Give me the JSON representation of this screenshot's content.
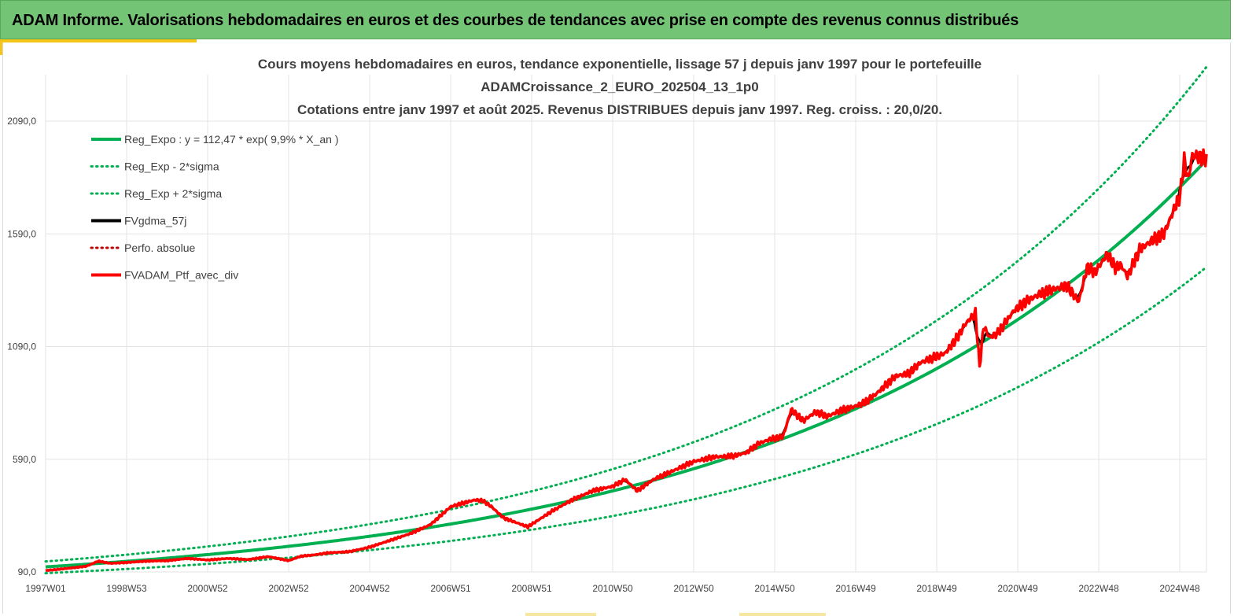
{
  "banner": {
    "title": "ADAM Informe. Valorisations hebdomadaires en euros et des courbes de tendances avec prise en compte des revenus connus distribués"
  },
  "colors": {
    "banner_bg": "#74c476",
    "accent": "#f5c518",
    "trend": "#00b050",
    "smoothed": "#000000",
    "portfolio": "#ff0000",
    "perf_abs": "#c00000"
  },
  "chart_data": {
    "type": "line",
    "title_lines": [
      "Cours moyens hebdomadaires  en euros, tendance exponentielle, lissage 57 j depuis janv 1997 pour le portefeuille",
      "ADAMCroissance_2_EURO_202504_13_1p0",
      "Cotations  entre janv 1997 et août 2025. Revenus DISTRIBUES depuis janv 1997. Reg. croiss. : 20,0/20."
    ],
    "x_tick_labels": [
      "1997W01",
      "1998W53",
      "2000W52",
      "2002W52",
      "2004W52",
      "2006W51",
      "2008W51",
      "2010W50",
      "2012W50",
      "2014W50",
      "2016W49",
      "2018W49",
      "2020W49",
      "2022W48",
      "2024W48"
    ],
    "x_range": [
      1997.0,
      2025.65
    ],
    "y_tick_labels": [
      "90,0",
      "590,0",
      "1090,0",
      "1590,0",
      "2090,0"
    ],
    "y_ticks": [
      90,
      590,
      1090,
      1590,
      2090
    ],
    "ylim": [
      90,
      2090
    ],
    "grid": true,
    "legend_position": "top-left",
    "legend": [
      {
        "key": "trend",
        "label": "Reg_Expo : y = 112,47 * exp( 9,9% *  X_an )"
      },
      {
        "key": "lower",
        "label": "Reg_Exp - 2*sigma"
      },
      {
        "key": "upper",
        "label": "Reg_Exp + 2*sigma"
      },
      {
        "key": "smoothed",
        "label": "FVgdma_57j"
      },
      {
        "key": "perf",
        "label": "Perfo. absolue"
      },
      {
        "key": "portfolio",
        "label": "FVADAM_Ptf_avec_div"
      }
    ],
    "trend": {
      "a": 112.47,
      "rate": 0.099,
      "start_year": 1997.0
    },
    "band_factors": {
      "lower": 0.752,
      "upper": 1.215
    },
    "series_portfolio": {
      "x": [
        1997.0,
        1997.5,
        1998.0,
        1998.3,
        1998.6,
        1999.0,
        1999.5,
        2000.0,
        2000.5,
        2001.0,
        2001.5,
        2002.0,
        2002.5,
        2003.0,
        2003.3,
        2003.6,
        2004.0,
        2004.5,
        2005.0,
        2005.5,
        2006.0,
        2006.5,
        2007.0,
        2007.3,
        2007.6,
        2007.8,
        2008.0,
        2008.3,
        2008.6,
        2008.9,
        2009.2,
        2009.5,
        2009.8,
        2010.0,
        2010.5,
        2011.0,
        2011.3,
        2011.6,
        2012.0,
        2012.5,
        2013.0,
        2013.5,
        2014.0,
        2014.3,
        2014.6,
        2014.9,
        2015.2,
        2015.4,
        2015.7,
        2016.0,
        2016.3,
        2016.6,
        2016.9,
        2017.2,
        2017.5,
        2017.8,
        2018.0,
        2018.3,
        2018.6,
        2018.9,
        2019.2,
        2019.5,
        2019.7,
        2019.95,
        2020.05,
        2020.15,
        2020.3,
        2020.5,
        2020.7,
        2020.9,
        2021.2,
        2021.5,
        2021.8,
        2022.0,
        2022.2,
        2022.5,
        2022.7,
        2022.9,
        2023.2,
        2023.4,
        2023.55,
        2023.7,
        2024.0,
        2024.3,
        2024.6,
        2024.9,
        2025.0,
        2025.1,
        2025.2,
        2025.3,
        2025.5,
        2025.65
      ],
      "y": [
        96,
        105,
        115,
        138,
        128,
        132,
        138,
        140,
        150,
        143,
        150,
        145,
        158,
        140,
        160,
        165,
        175,
        180,
        200,
        230,
        260,
        300,
        380,
        395,
        410,
        405,
        380,
        330,
        310,
        290,
        325,
        360,
        390,
        410,
        450,
        470,
        500,
        450,
        500,
        540,
        580,
        600,
        605,
        620,
        660,
        680,
        690,
        810,
        760,
        800,
        780,
        805,
        820,
        840,
        880,
        930,
        960,
        970,
        1020,
        1040,
        1060,
        1130,
        1190,
        1240,
        1000,
        1180,
        1130,
        1150,
        1200,
        1250,
        1290,
        1320,
        1340,
        1350,
        1360,
        1290,
        1440,
        1420,
        1500,
        1440,
        1450,
        1400,
        1520,
        1560,
        1590,
        1720,
        1760,
        1920,
        1830,
        1940,
        1930,
        1920
      ]
    }
  }
}
